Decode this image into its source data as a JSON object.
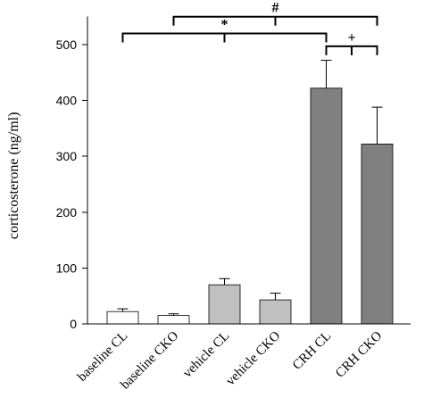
{
  "chart_data": {
    "type": "bar",
    "title": "",
    "xlabel": "",
    "ylabel": "corticosterone (ng/ml)",
    "ylim": [
      0,
      550
    ],
    "yticks": [
      0,
      100,
      200,
      300,
      400,
      500
    ],
    "grid": false,
    "categories": [
      "baseline CL",
      "baseline CKO",
      "vehicle CL",
      "vehicle CKO",
      "CRH CL",
      "CRH CKO"
    ],
    "values": [
      22,
      15,
      70,
      43,
      422,
      322
    ],
    "errors": [
      5,
      3,
      11,
      12,
      50,
      66
    ],
    "bar_colors": [
      "#ffffff",
      "#ffffff",
      "#c0c0c0",
      "#c0c0c0",
      "#808080",
      "#808080"
    ],
    "annotations": [
      {
        "symbol": "#",
        "from": "baseline CKO",
        "to": "CRH CKO",
        "level": 550
      },
      {
        "symbol": "*",
        "from": "baseline CL",
        "to": "CRH CL",
        "level": 520
      },
      {
        "symbol": "+",
        "from": "CRH CL",
        "to": "CRH CKO",
        "level": 497
      }
    ]
  }
}
